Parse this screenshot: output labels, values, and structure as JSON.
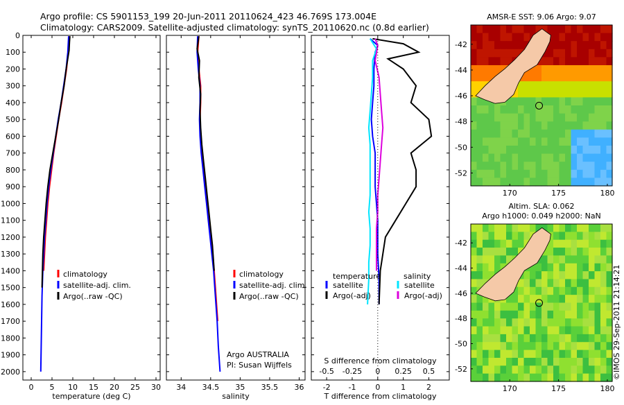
{
  "title": {
    "line1": "Argo profile: CS 5901153_199 20-Jun-2011 20110624_423 46.769S 173.004E",
    "line2": "Climatology: CARS2009. Satellite-adjusted climatology: synTS_20110620.nc (0.8d earlier)"
  },
  "chart_data": [
    {
      "type": "line",
      "id": "temperature",
      "xlabel": "temperature (deg C)",
      "ylabel": "",
      "xlim": [
        -2,
        31
      ],
      "ylim": [
        2050,
        0
      ],
      "xticks": [
        0,
        5,
        10,
        15,
        20,
        25,
        30
      ],
      "yticks": [
        0,
        100,
        200,
        300,
        400,
        500,
        600,
        700,
        800,
        900,
        1000,
        1100,
        1200,
        1300,
        1400,
        1500,
        1600,
        1700,
        1800,
        1900,
        2000
      ],
      "legend": [
        "climatology",
        "satellite-adj. clim.",
        "Argo(..raw -QC)"
      ],
      "series": [
        {
          "name": "climatology",
          "color": "#ff0000",
          "x": [
            9.1,
            8.9,
            8.5,
            7.9,
            7.3,
            6.6,
            6.0,
            5.4,
            4.9,
            4.4,
            4.0,
            3.7,
            3.4,
            3.2,
            3.0
          ],
          "y": [
            5,
            100,
            200,
            300,
            400,
            500,
            600,
            700,
            800,
            900,
            1000,
            1100,
            1200,
            1300,
            1400
          ]
        },
        {
          "name": "satellite-adj. clim.",
          "color": "#0000ff",
          "x": [
            9.0,
            8.8,
            8.4,
            7.8,
            7.2,
            6.5,
            5.9,
            5.3,
            4.7,
            4.2,
            3.8,
            3.5,
            3.2,
            3.0,
            2.8,
            2.6,
            2.5,
            2.4,
            2.3
          ],
          "y": [
            5,
            100,
            200,
            300,
            400,
            500,
            600,
            700,
            800,
            900,
            1000,
            1100,
            1200,
            1300,
            1400,
            1550,
            1700,
            1850,
            2000
          ]
        },
        {
          "name": "Argo(..raw -QC)",
          "color": "#000000",
          "x": [
            9.3,
            9.2,
            9.1,
            8.4,
            7.9,
            7.2,
            6.6,
            5.9,
            5.2,
            4.5,
            4.0,
            3.6,
            3.3,
            3.0,
            2.8,
            2.6
          ],
          "y": [
            5,
            40,
            90,
            200,
            300,
            400,
            500,
            600,
            700,
            800,
            900,
            1000,
            1100,
            1200,
            1300,
            1500
          ]
        }
      ]
    },
    {
      "type": "line",
      "id": "salinity",
      "xlabel": "salinity",
      "ylabel": "",
      "xlim": [
        33.75,
        36.1
      ],
      "ylim": [
        2050,
        0
      ],
      "xticks": [
        34,
        34.5,
        35,
        35.5,
        36
      ],
      "legend": [
        "climatology",
        "satellite-adj. clim.",
        "Argo(..raw -QC)"
      ],
      "annotation": [
        "Argo AUSTRALIA",
        "PI: Susan Wijffels"
      ],
      "series": [
        {
          "name": "climatology",
          "color": "#ff0000",
          "x": [
            34.3,
            34.28,
            34.3,
            34.33,
            34.33,
            34.32,
            34.33,
            34.35,
            34.38,
            34.41,
            34.44,
            34.47,
            34.5,
            34.53,
            34.56,
            34.59,
            34.62
          ],
          "y": [
            5,
            100,
            200,
            300,
            400,
            500,
            600,
            700,
            800,
            900,
            1000,
            1100,
            1200,
            1300,
            1400,
            1550,
            1700
          ]
        },
        {
          "name": "satellite-adj. clim.",
          "color": "#0000ff",
          "x": [
            34.28,
            34.27,
            34.29,
            34.32,
            34.32,
            34.31,
            34.32,
            34.34,
            34.37,
            34.4,
            34.43,
            34.46,
            34.49,
            34.52,
            34.55,
            34.58,
            34.61,
            34.63,
            34.66
          ],
          "y": [
            5,
            100,
            200,
            300,
            400,
            500,
            600,
            700,
            800,
            900,
            1000,
            1100,
            1200,
            1300,
            1400,
            1550,
            1700,
            1850,
            2000
          ]
        },
        {
          "name": "Argo(..raw -QC)",
          "color": "#000000",
          "x": [
            34.3,
            34.27,
            34.31,
            34.3,
            34.33,
            34.32,
            34.33,
            34.35,
            34.38,
            34.41,
            34.44,
            34.47,
            34.5,
            34.53,
            34.56
          ],
          "y": [
            5,
            80,
            150,
            250,
            350,
            450,
            550,
            650,
            750,
            850,
            950,
            1050,
            1150,
            1250,
            1400
          ]
        }
      ]
    },
    {
      "type": "line",
      "id": "difference",
      "xlabel": "T difference from climatology",
      "xlabel_top": "S difference from climatology",
      "xlim": [
        -2.6,
        2.8
      ],
      "ylim": [
        2050,
        0
      ],
      "xticks": [
        -2,
        -1,
        0,
        1,
        2
      ],
      "sticks": [
        "-0.5",
        "-0.25",
        "0",
        "0.25",
        "0.5"
      ],
      "legend_headers": [
        "temperature",
        "salinity"
      ],
      "legend": [
        "satellite",
        "Argo(-adj)",
        "satellite",
        "Argo(-adj)"
      ],
      "series": [
        {
          "name": "satellite",
          "color": "#0000ff",
          "x": [
            -0.3,
            0.0,
            -0.1,
            -0.15,
            -0.15,
            -0.2,
            -0.25,
            -0.2,
            -0.1,
            -0.1,
            -0.1,
            -0.05,
            0.0,
            0.0,
            0.0,
            0.05,
            0.05
          ],
          "y": [
            20,
            60,
            100,
            200,
            300,
            400,
            500,
            600,
            700,
            800,
            900,
            1000,
            1100,
            1200,
            1300,
            1450,
            1600
          ]
        },
        {
          "name": "Argo(-adj)",
          "color": "#000000",
          "x": [
            -0.2,
            1.0,
            1.6,
            0.4,
            1.0,
            1.5,
            1.3,
            2.0,
            2.1,
            1.3,
            1.5,
            1.5,
            1.1,
            0.7,
            0.3,
            0.1,
            0.05
          ],
          "y": [
            20,
            50,
            100,
            140,
            200,
            300,
            400,
            500,
            600,
            700,
            800,
            900,
            1000,
            1100,
            1200,
            1400,
            1600
          ]
        },
        {
          "name": "satellite",
          "color": "#00e5ff",
          "x": [
            -0.3,
            -0.05,
            -0.2,
            -0.2,
            -0.25,
            -0.3,
            -0.35,
            -0.3,
            -0.3,
            -0.3,
            -0.3,
            -0.35,
            -0.3,
            -0.3,
            -0.35,
            -0.35,
            -0.4
          ],
          "y": [
            20,
            80,
            150,
            250,
            350,
            450,
            550,
            650,
            750,
            850,
            950,
            1050,
            1150,
            1250,
            1350,
            1450,
            1600
          ]
        },
        {
          "name": "Argo(-adj)",
          "color": "#dd00dd",
          "x": [
            -0.1,
            0.0,
            -0.1,
            0.05,
            0.1,
            0.15,
            0.2,
            0.15,
            0.1,
            0.05,
            0.0,
            0.0,
            -0.05,
            -0.05,
            -0.05
          ],
          "y": [
            20,
            60,
            150,
            250,
            350,
            450,
            550,
            650,
            750,
            850,
            950,
            1050,
            1150,
            1250,
            1400
          ]
        }
      ]
    },
    {
      "type": "heatmap",
      "id": "sst-map",
      "title": "AMSR-E SST: 9.06 Argo: 9.07",
      "xlim": [
        166,
        180.5
      ],
      "ylim": [
        -53,
        -40.5
      ],
      "xticks": [
        170,
        175,
        180
      ],
      "yticks": [
        -42,
        -44,
        -46,
        -48,
        -50,
        -52
      ],
      "marker": [
        173.004,
        -46.769
      ]
    },
    {
      "type": "heatmap",
      "id": "sla-map",
      "title_line1": "Altim. SLA: 0.062",
      "title_line2": "Argo h1000: 0.049 h2000: NaN",
      "xlim": [
        166,
        180.5
      ],
      "ylim": [
        -53,
        -40.5
      ],
      "xticks": [
        170,
        175,
        180
      ],
      "yticks": [
        -42,
        -44,
        -46,
        -48,
        -50,
        -52
      ],
      "marker": [
        173.004,
        -46.769
      ]
    }
  ],
  "legend_color_keys": {
    "red": "#ff0000",
    "blue": "#0000ff",
    "black": "#000000",
    "cyan": "#00e5ff",
    "magenta": "#dd00dd"
  },
  "watermark": "©IMOS 29-Sep-2011 21:14:21"
}
